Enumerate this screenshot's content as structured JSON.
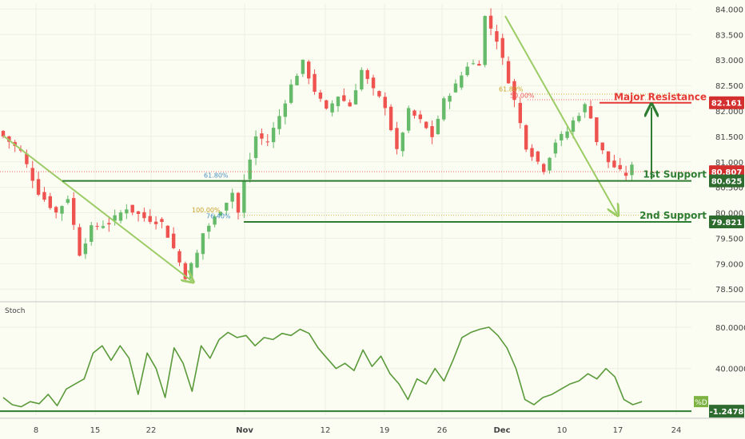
{
  "colors": {
    "background": "#fbfcf2",
    "up_candle": "#66bb6a",
    "down_candle": "#ef5350",
    "support_line": "#2e7d32",
    "resistance_line": "#e53935",
    "arrow": "#9ccc65",
    "stoch_line": "#5a9a3a",
    "axis_text": "#444444",
    "price_badge": "#d32f2f",
    "support_badge": "#2e6b2e"
  },
  "chart_data": [
    {
      "type": "candlestick",
      "name": "price",
      "x_ticks": [
        "8",
        "15",
        "22",
        "Nov",
        "12",
        "19",
        "26",
        "Dec",
        "10",
        "17",
        "24"
      ],
      "y_ticks": [
        "78.500",
        "79.000",
        "79.500",
        "80.000",
        "80.500",
        "81.000",
        "81.500",
        "82.000",
        "82.500",
        "83.000",
        "83.500",
        "84.000"
      ],
      "ylim": [
        78.3,
        84.1
      ],
      "close_path": [
        [
          0,
          81.6
        ],
        [
          4,
          81.2
        ],
        [
          7,
          80.4
        ],
        [
          10,
          80.0
        ],
        [
          12,
          80.3
        ],
        [
          14,
          79.2
        ],
        [
          16,
          79.7
        ],
        [
          19,
          79.8
        ],
        [
          22,
          80.1
        ],
        [
          25,
          79.9
        ],
        [
          28,
          79.8
        ],
        [
          30,
          79.3
        ],
        [
          32,
          78.75
        ],
        [
          34,
          79.2
        ],
        [
          35,
          79.6
        ],
        [
          37,
          79.9
        ],
        [
          40,
          80.4
        ],
        [
          41,
          80.0
        ],
        [
          42,
          80.6
        ],
        [
          44,
          81.5
        ],
        [
          46,
          81.4
        ],
        [
          48,
          81.9
        ],
        [
          50,
          82.5
        ],
        [
          52,
          82.95
        ],
        [
          54,
          82.4
        ],
        [
          56,
          82.0
        ],
        [
          58,
          82.3
        ],
        [
          60,
          82.1
        ],
        [
          62,
          82.8
        ],
        [
          64,
          82.4
        ],
        [
          66,
          82.1
        ],
        [
          68,
          81.2
        ],
        [
          70,
          82.0
        ],
        [
          72,
          81.8
        ],
        [
          74,
          81.5
        ],
        [
          76,
          82.2
        ],
        [
          78,
          82.5
        ],
        [
          80,
          82.9
        ],
        [
          82,
          82.95
        ],
        [
          83,
          83.85
        ],
        [
          85,
          83.4
        ],
        [
          87,
          82.6
        ],
        [
          88,
          82.2
        ],
        [
          90,
          81.3
        ],
        [
          92,
          81.0
        ],
        [
          93,
          80.85
        ],
        [
          95,
          81.4
        ],
        [
          97,
          81.6
        ],
        [
          98,
          81.8
        ],
        [
          100,
          82.1
        ],
        [
          101,
          81.9
        ],
        [
          102,
          81.4
        ],
        [
          104,
          81.0
        ],
        [
          106,
          80.8
        ],
        [
          107,
          80.75
        ],
        [
          108,
          80.9
        ]
      ],
      "annotations": [
        {
          "label": "Major Resistance",
          "value": 82.161,
          "badge": "82.161"
        },
        {
          "label": "1st Support",
          "value": 80.625,
          "badge": "80.625"
        },
        {
          "label": "2nd Support",
          "value": 79.821,
          "badge": "79.821"
        }
      ],
      "current_price": "80.807",
      "fib_labels": [
        "61.80%",
        "50.00%",
        "61.80%",
        "100.00%",
        "76.40%"
      ]
    },
    {
      "type": "line",
      "name": "Stoch",
      "series": [
        {
          "name": "%D",
          "values": [
            12,
            5,
            3,
            8,
            6,
            15,
            4,
            20,
            25,
            30,
            55,
            62,
            48,
            62,
            50,
            15,
            55,
            40,
            12,
            60,
            45,
            18,
            62,
            50,
            68,
            75,
            70,
            72,
            62,
            70,
            68,
            74,
            72,
            78,
            74,
            60,
            50,
            40,
            45,
            38,
            58,
            42,
            52,
            35,
            25,
            10,
            30,
            25,
            40,
            28,
            48,
            70,
            75,
            78,
            80,
            72,
            60,
            40,
            10,
            5,
            12,
            15,
            20,
            25,
            28,
            35,
            30,
            40,
            32,
            10,
            5,
            8
          ]
        }
      ],
      "y_ticks": [
        "80.0000",
        "40.0000"
      ],
      "ylim": [
        -5,
        100
      ],
      "current_value": "-1.2478"
    }
  ],
  "stoch_label": "Stoch",
  "stoch_badge_label": "%D"
}
